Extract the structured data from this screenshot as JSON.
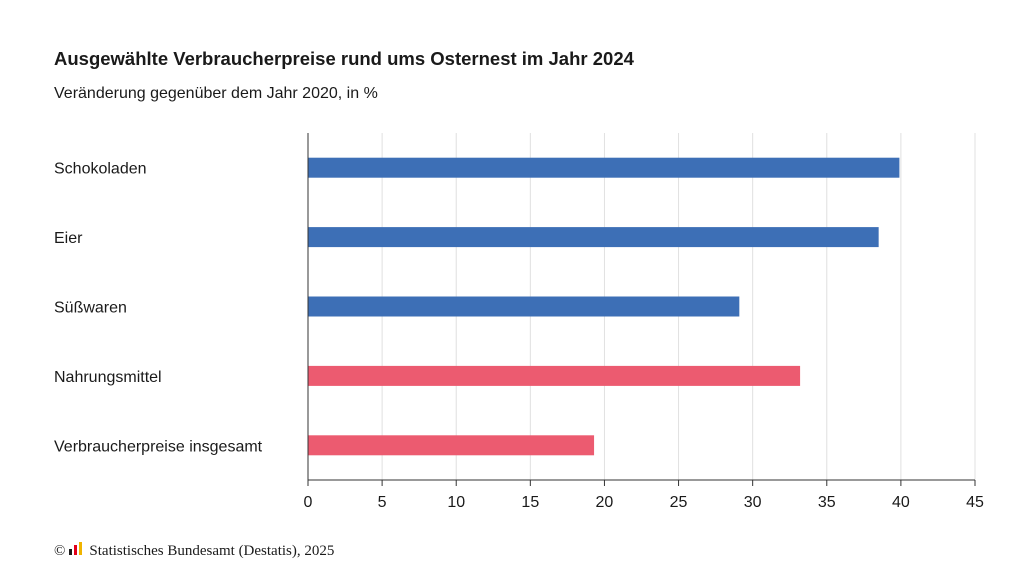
{
  "chart_data": {
    "type": "bar",
    "orientation": "horizontal",
    "title": "Ausgewählte Verbraucherpreise rund ums Osternest im Jahr 2024",
    "subtitle": "Veränderung gegenüber dem Jahr 2020, in %",
    "categories": [
      "Schokoladen",
      "Eier",
      "Süßwaren",
      "Nahrungsmittel",
      "Verbraucherpreise insgesamt"
    ],
    "values": [
      39.9,
      38.5,
      29.1,
      33.2,
      19.3
    ],
    "colors": [
      "#3d6fb6",
      "#3d6fb6",
      "#3d6fb6",
      "#ec5b70",
      "#ec5b70"
    ],
    "xlim": [
      0,
      45
    ],
    "xticks": [
      0,
      5,
      10,
      15,
      20,
      25,
      30,
      35,
      40,
      45
    ],
    "grid": true,
    "xlabel": "",
    "ylabel": ""
  },
  "footer": {
    "copyright_symbol": "©",
    "source": "Statistisches Bundesamt (Destatis), 2025"
  }
}
